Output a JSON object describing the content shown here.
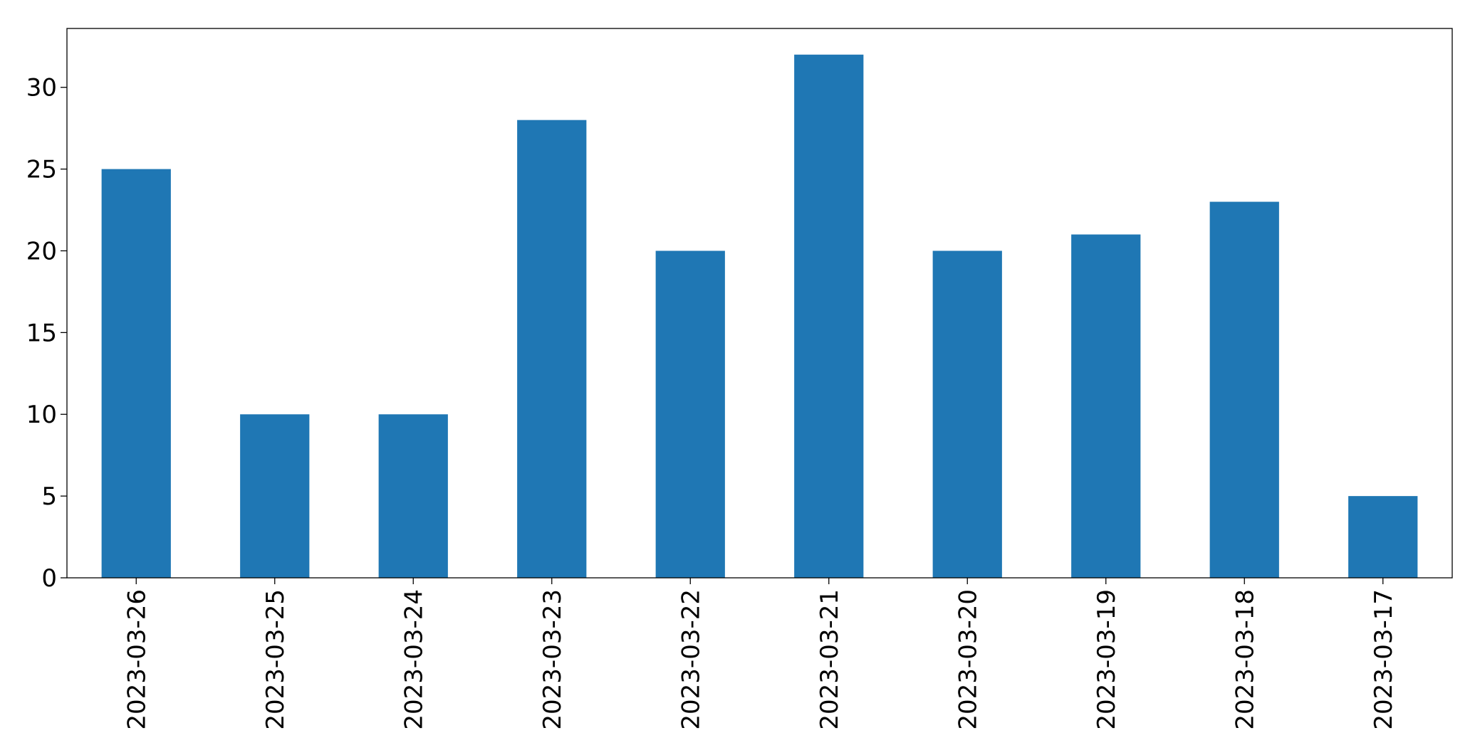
{
  "chart_data": {
    "type": "bar",
    "categories": [
      "2023-03-26",
      "2023-03-25",
      "2023-03-24",
      "2023-03-23",
      "2023-03-22",
      "2023-03-21",
      "2023-03-20",
      "2023-03-19",
      "2023-03-18",
      "2023-03-17"
    ],
    "values": [
      25,
      10,
      10,
      28,
      20,
      32,
      20,
      21,
      23,
      5
    ],
    "color": "#1f77b4",
    "ylim": [
      0,
      33.6
    ],
    "yticks": [
      0,
      5,
      10,
      15,
      20,
      25,
      30
    ],
    "grid": false
  }
}
